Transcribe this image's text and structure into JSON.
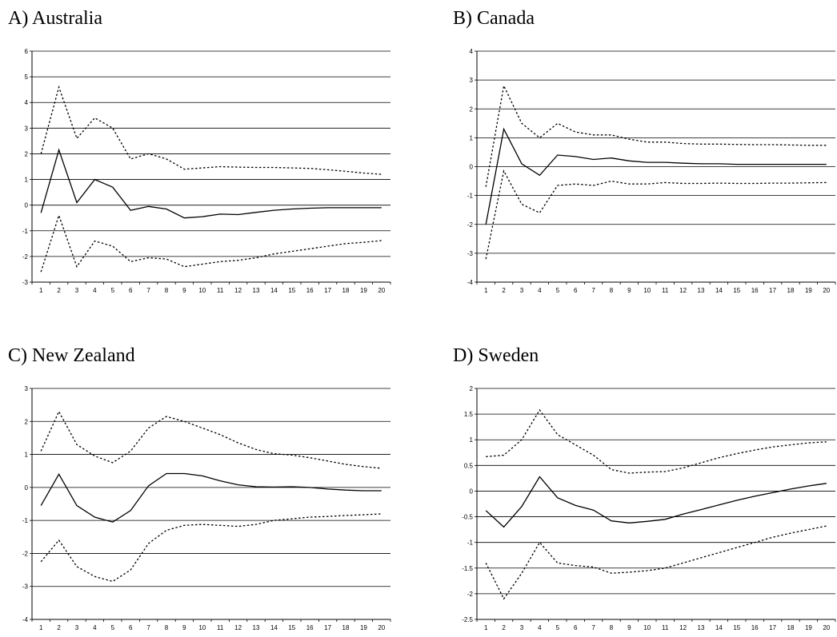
{
  "chart_data": [
    {
      "type": "line",
      "title": "A) Australia",
      "x": [
        1,
        2,
        3,
        4,
        5,
        6,
        7,
        8,
        9,
        10,
        11,
        12,
        13,
        14,
        15,
        16,
        17,
        18,
        19,
        20
      ],
      "xlabel": "",
      "ylabel": "",
      "ylim": [
        -3,
        6
      ],
      "yticks": [
        -3,
        -2,
        -1,
        0,
        1,
        2,
        3,
        4,
        5,
        6
      ],
      "grid": true,
      "series": [
        {
          "role": "upper",
          "style": "dotted",
          "values": [
            2.0,
            4.6,
            2.6,
            3.4,
            3.0,
            1.8,
            2.0,
            1.8,
            1.4,
            1.45,
            1.5,
            1.48,
            1.47,
            1.47,
            1.45,
            1.43,
            1.38,
            1.32,
            1.25,
            1.2
          ]
        },
        {
          "role": "point",
          "style": "solid",
          "values": [
            -0.3,
            2.15,
            0.1,
            1.0,
            0.7,
            -0.2,
            -0.05,
            -0.15,
            -0.5,
            -0.45,
            -0.35,
            -0.37,
            -0.28,
            -0.2,
            -0.15,
            -0.12,
            -0.1,
            -0.1,
            -0.1,
            -0.1
          ]
        },
        {
          "role": "lower",
          "style": "dotted",
          "values": [
            -2.6,
            -0.4,
            -2.4,
            -1.4,
            -1.6,
            -2.2,
            -2.05,
            -2.1,
            -2.4,
            -2.3,
            -2.2,
            -2.15,
            -2.05,
            -1.9,
            -1.8,
            -1.7,
            -1.6,
            -1.5,
            -1.45,
            -1.38
          ]
        }
      ]
    },
    {
      "type": "line",
      "title": "B) Canada",
      "x": [
        1,
        2,
        3,
        4,
        5,
        6,
        7,
        8,
        9,
        10,
        11,
        12,
        13,
        14,
        15,
        16,
        17,
        18,
        19,
        20
      ],
      "xlabel": "",
      "ylabel": "",
      "ylim": [
        -4,
        4
      ],
      "yticks": [
        -4,
        -3,
        -2,
        -1,
        0,
        1,
        2,
        3,
        4
      ],
      "grid": true,
      "series": [
        {
          "role": "upper",
          "style": "dotted",
          "values": [
            -0.7,
            2.8,
            1.5,
            1.0,
            1.5,
            1.2,
            1.1,
            1.1,
            0.95,
            0.85,
            0.85,
            0.8,
            0.78,
            0.78,
            0.77,
            0.76,
            0.76,
            0.75,
            0.74,
            0.74
          ]
        },
        {
          "role": "point",
          "style": "solid",
          "values": [
            -2.0,
            1.3,
            0.1,
            -0.3,
            0.4,
            0.35,
            0.25,
            0.3,
            0.2,
            0.15,
            0.15,
            0.12,
            0.1,
            0.1,
            0.08,
            0.08,
            0.08,
            0.08,
            0.08,
            0.08
          ]
        },
        {
          "role": "lower",
          "style": "dotted",
          "values": [
            -3.2,
            -0.15,
            -1.3,
            -1.6,
            -0.65,
            -0.6,
            -0.65,
            -0.5,
            -0.6,
            -0.6,
            -0.55,
            -0.58,
            -0.58,
            -0.57,
            -0.58,
            -0.58,
            -0.57,
            -0.57,
            -0.56,
            -0.55
          ]
        }
      ]
    },
    {
      "type": "line",
      "title": "C) New Zealand",
      "x": [
        1,
        2,
        3,
        4,
        5,
        6,
        7,
        8,
        9,
        10,
        11,
        12,
        13,
        14,
        15,
        16,
        17,
        18,
        19,
        20
      ],
      "xlabel": "",
      "ylabel": "",
      "ylim": [
        -4,
        3
      ],
      "yticks": [
        -4,
        -3,
        -2,
        -1,
        0,
        1,
        2,
        3
      ],
      "grid": true,
      "series": [
        {
          "role": "upper",
          "style": "dotted",
          "values": [
            1.1,
            2.3,
            1.3,
            0.95,
            0.75,
            1.1,
            1.8,
            2.15,
            2.0,
            1.8,
            1.6,
            1.35,
            1.15,
            1.02,
            0.98,
            0.9,
            0.8,
            0.7,
            0.63,
            0.58
          ]
        },
        {
          "role": "point",
          "style": "solid",
          "values": [
            -0.55,
            0.4,
            -0.55,
            -0.9,
            -1.05,
            -0.7,
            0.05,
            0.42,
            0.42,
            0.35,
            0.2,
            0.08,
            0.02,
            0.01,
            0.02,
            0.0,
            -0.05,
            -0.08,
            -0.1,
            -0.1
          ]
        },
        {
          "role": "lower",
          "style": "dotted",
          "values": [
            -2.25,
            -1.6,
            -2.4,
            -2.7,
            -2.85,
            -2.5,
            -1.7,
            -1.3,
            -1.15,
            -1.12,
            -1.15,
            -1.18,
            -1.12,
            -1.0,
            -0.95,
            -0.9,
            -0.88,
            -0.85,
            -0.83,
            -0.8
          ]
        }
      ]
    },
    {
      "type": "line",
      "title": "D) Sweden",
      "x": [
        1,
        2,
        3,
        4,
        5,
        6,
        7,
        8,
        9,
        10,
        11,
        12,
        13,
        14,
        15,
        16,
        17,
        18,
        19,
        20
      ],
      "xlabel": "",
      "ylabel": "",
      "ylim": [
        -2.5,
        2
      ],
      "yticks": [
        -2.5,
        -2,
        -1.5,
        -1,
        -0.5,
        0,
        0.5,
        1,
        1.5,
        2
      ],
      "grid": true,
      "series": [
        {
          "role": "upper",
          "style": "dotted",
          "values": [
            0.67,
            0.7,
            1.0,
            1.58,
            1.1,
            0.9,
            0.7,
            0.42,
            0.35,
            0.37,
            0.38,
            0.45,
            0.55,
            0.65,
            0.73,
            0.8,
            0.86,
            0.9,
            0.94,
            0.96
          ]
        },
        {
          "role": "point",
          "style": "solid",
          "values": [
            -0.38,
            -0.7,
            -0.3,
            0.28,
            -0.13,
            -0.28,
            -0.37,
            -0.58,
            -0.62,
            -0.59,
            -0.55,
            -0.45,
            -0.36,
            -0.27,
            -0.18,
            -0.1,
            -0.03,
            0.04,
            0.1,
            0.15
          ]
        },
        {
          "role": "lower",
          "style": "dotted",
          "values": [
            -1.4,
            -2.1,
            -1.6,
            -1.0,
            -1.4,
            -1.45,
            -1.48,
            -1.6,
            -1.58,
            -1.55,
            -1.5,
            -1.4,
            -1.3,
            -1.2,
            -1.1,
            -1.0,
            -0.9,
            -0.82,
            -0.75,
            -0.68
          ]
        }
      ]
    }
  ]
}
